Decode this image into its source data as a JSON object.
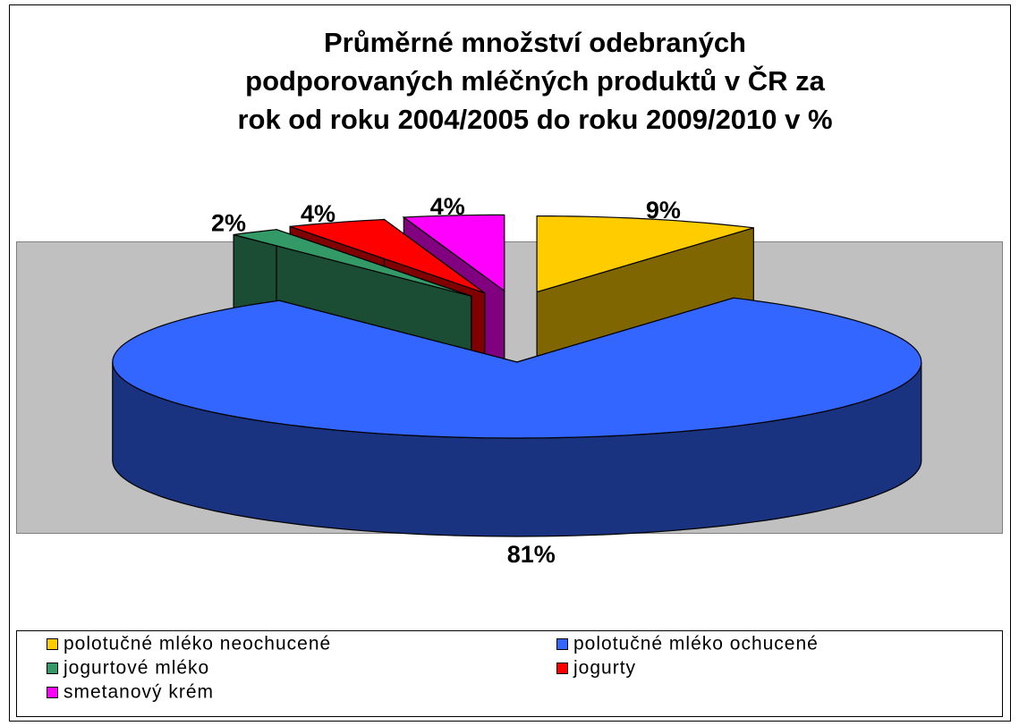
{
  "chart_data": {
    "type": "pie3d",
    "title": [
      "Průměrné množství odebraných",
      "podporovaných mléčných produktů v ČR za",
      "rok od roku 2004/2005 do roku 2009/2010 v %"
    ],
    "categories": [
      "polotučné mléko neochucené",
      "polotučné mléko ochucené",
      "jogurtové mléko",
      "jogurty",
      "smetanový krém"
    ],
    "values": [
      9,
      81,
      2,
      4,
      4
    ],
    "value_labels": [
      "9%",
      "81%",
      "2%",
      "4%",
      "4%"
    ],
    "colors": [
      "#FFCC00",
      "#3366FF",
      "#339966",
      "#FF0000",
      "#FF00FF"
    ],
    "legend": "bottom"
  }
}
